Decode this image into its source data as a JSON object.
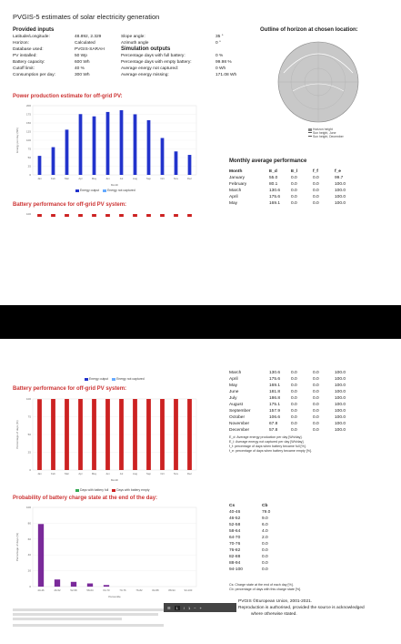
{
  "page1": {
    "title": "PVGIS-5 estimates of solar electricity generation",
    "provided_inputs_heading": "Provided inputs",
    "inputs": [
      {
        "label": "Latitude/Longitude:",
        "value": "48.892, 2.329"
      },
      {
        "label": "Horizon:",
        "value": "Calculated"
      },
      {
        "label": "Database used:",
        "value": "PVGIS-SARAH"
      },
      {
        "label": "PV installed:",
        "value": "50 Wp"
      },
      {
        "label": "Battery capacity:",
        "value": "600 Wh"
      },
      {
        "label": "Cutoff limit:",
        "value": "40 %"
      },
      {
        "label": "Consumption per day:",
        "value": "300 Wh"
      }
    ],
    "angles": [
      {
        "label": "Slope angle:",
        "value": "35 °"
      },
      {
        "label": "Azimuth angle",
        "value": "0 °"
      }
    ],
    "simulation_heading": "Simulation outputs",
    "outputs": [
      {
        "label": "Percentage days with full battery:",
        "value": "0 %"
      },
      {
        "label": "Percentage days with empty battery:",
        "value": "99.98 %"
      },
      {
        "label": "Average energy not captured:",
        "value": "0 Wh"
      },
      {
        "label": "Average energy missing:",
        "value": "171.08 Wh"
      }
    ],
    "horizon_heading": "Outline of horizon at chosen location:",
    "horizon_legend": [
      "Horizon height",
      "Sun height, June",
      "Sun height, December"
    ],
    "power_heading": "Power production estimate for off-grid PV:",
    "power_legend": [
      "Energy output",
      "Energy not captured"
    ],
    "battery_heading": "Battery performance for off-grid PV system:",
    "monthly_heading": "Monthly average performance",
    "monthly_columns": [
      "Month",
      "E_d",
      "E_l",
      "f_f",
      "f_e"
    ],
    "monthly_rows": [
      [
        "January",
        "55.0",
        "0.0",
        "0.0",
        "99.7"
      ],
      [
        "February",
        "80.1",
        "0.0",
        "0.0",
        "100.0"
      ],
      [
        "March",
        "130.6",
        "0.0",
        "0.0",
        "100.0"
      ],
      [
        "April",
        "175.6",
        "0.0",
        "0.0",
        "100.0"
      ],
      [
        "May",
        "169.1",
        "0.0",
        "0.0",
        "100.0"
      ]
    ]
  },
  "page2": {
    "battery_legend": [
      "Energy output",
      "Energy not captured"
    ],
    "battery_heading": "Battery performance for off-grid PV system:",
    "monthly_rows": [
      [
        "March",
        "130.6",
        "0.0",
        "0.0",
        "100.0"
      ],
      [
        "April",
        "175.6",
        "0.0",
        "0.0",
        "100.0"
      ],
      [
        "May",
        "169.1",
        "0.0",
        "0.0",
        "100.0"
      ],
      [
        "June",
        "181.8",
        "0.0",
        "0.0",
        "100.0"
      ],
      [
        "July",
        "186.8",
        "0.0",
        "0.0",
        "100.0"
      ],
      [
        "August",
        "175.1",
        "0.0",
        "0.0",
        "100.0"
      ],
      [
        "September",
        "157.9",
        "0.0",
        "0.0",
        "100.0"
      ],
      [
        "October",
        "106.6",
        "0.0",
        "0.0",
        "100.0"
      ],
      [
        "November",
        "67.8",
        "0.0",
        "0.0",
        "100.0"
      ],
      [
        "December",
        "57.8",
        "0.0",
        "0.0",
        "100.0"
      ]
    ],
    "notes": [
      "E_d: Average energy production per day [Wh/day].",
      "E_l: Average energy not captured per day [Wh/day].",
      "f_f: percentage of days when battery became full [%].",
      "f_e: percentage of days when battery became empty [%]."
    ],
    "days_legend": [
      "Days with battery full",
      "Days with battery empty"
    ],
    "prob_heading": "Probability of battery charge state at the end of the day:",
    "cs_columns": [
      "Cs",
      "Cb"
    ],
    "cs_rows": [
      [
        "40-46",
        "79.0"
      ],
      [
        "46-52",
        "9.0"
      ],
      [
        "52-58",
        "6.0"
      ],
      [
        "58-64",
        "4.0"
      ],
      [
        "64-70",
        "2.0"
      ],
      [
        "70-76",
        "0.0"
      ],
      [
        "76-82",
        "0.0"
      ],
      [
        "82-88",
        "0.0"
      ],
      [
        "88-94",
        "0.0"
      ],
      [
        "94-100",
        "0.0"
      ]
    ],
    "cs_notes": [
      "Cs: Charge state at the end of each day [%].",
      "Cb: percentage of days with this charge state [%]."
    ],
    "copyright": "PVGIS ©European Union, 2001-2021.",
    "reproduction": "Reproduction is authorised, provided the source is acknowledged",
    "reproduction2": "where otherwise stated.",
    "toolbar_page": "1",
    "toolbar_sep": "/",
    "toolbar_total": "1"
  },
  "chart_data": [
    {
      "type": "bar",
      "title": "Power production estimate for off-grid PV:",
      "categories": [
        "Jan",
        "Feb",
        "Mar",
        "Apr",
        "May",
        "Jun",
        "Jul",
        "Aug",
        "Sep",
        "Oct",
        "Nov",
        "Dec"
      ],
      "series": [
        {
          "name": "Energy output",
          "values": [
            55.0,
            80.1,
            130.6,
            175.6,
            169.1,
            181.8,
            186.8,
            175.1,
            157.9,
            106.6,
            67.8,
            57.8
          ],
          "color": "#2233cc"
        },
        {
          "name": "Energy not captured",
          "values": [
            0,
            0,
            0,
            0,
            0,
            0,
            0,
            0,
            0,
            0,
            0,
            0
          ],
          "color": "#66aaff"
        }
      ],
      "ylim": [
        0,
        200
      ],
      "yticks": [
        "0",
        "25",
        "50",
        "75",
        "100",
        "125",
        "150",
        "175",
        "200"
      ],
      "xlabel": "Month",
      "ylabel": "Energy per day (Wh)"
    },
    {
      "type": "bar",
      "title": "Battery performance for off-grid PV system:",
      "categories": [
        "Jan",
        "Feb",
        "Mar",
        "Apr",
        "May",
        "Jun",
        "Jul",
        "Aug",
        "Sep",
        "Oct",
        "Nov",
        "Dec"
      ],
      "series": [
        {
          "name": "Days with battery full",
          "values": [
            0,
            0,
            0,
            0,
            0,
            0,
            0,
            0,
            0,
            0,
            0,
            0
          ],
          "color": "#33aa55"
        },
        {
          "name": "Days with battery empty",
          "values": [
            99.7,
            100,
            100,
            100,
            100,
            100,
            100,
            100,
            100,
            100,
            100,
            100
          ],
          "color": "#cc2222"
        }
      ],
      "ylim": [
        0,
        100
      ],
      "yticks": [
        "0",
        "25",
        "50",
        "75",
        "100"
      ],
      "xlabel": "Month",
      "ylabel": "Percentage of days (%)"
    },
    {
      "type": "bar",
      "title": "Probability of battery charge state at the end of the day:",
      "categories": [
        "40-46",
        "46-52",
        "52-58",
        "58-64",
        "64-70",
        "70-76",
        "76-82",
        "82-88",
        "88-94",
        "94-100"
      ],
      "values": [
        79.0,
        9.0,
        6.0,
        4.0,
        2.0,
        0.0,
        0.0,
        0.0,
        0.0,
        0.0
      ],
      "color": "#7a2a9a",
      "ylim": [
        0,
        100
      ],
      "yticks": [
        "0",
        "20",
        "40",
        "60",
        "80",
        "100"
      ],
      "xlabel": "Percentile",
      "ylabel": "Percentage of days (%)"
    }
  ],
  "colors": {
    "red_heading": "#cc3333",
    "bar_blue": "#2233cc",
    "bar_red": "#cc2222",
    "bar_purple": "#7a2a9a"
  }
}
